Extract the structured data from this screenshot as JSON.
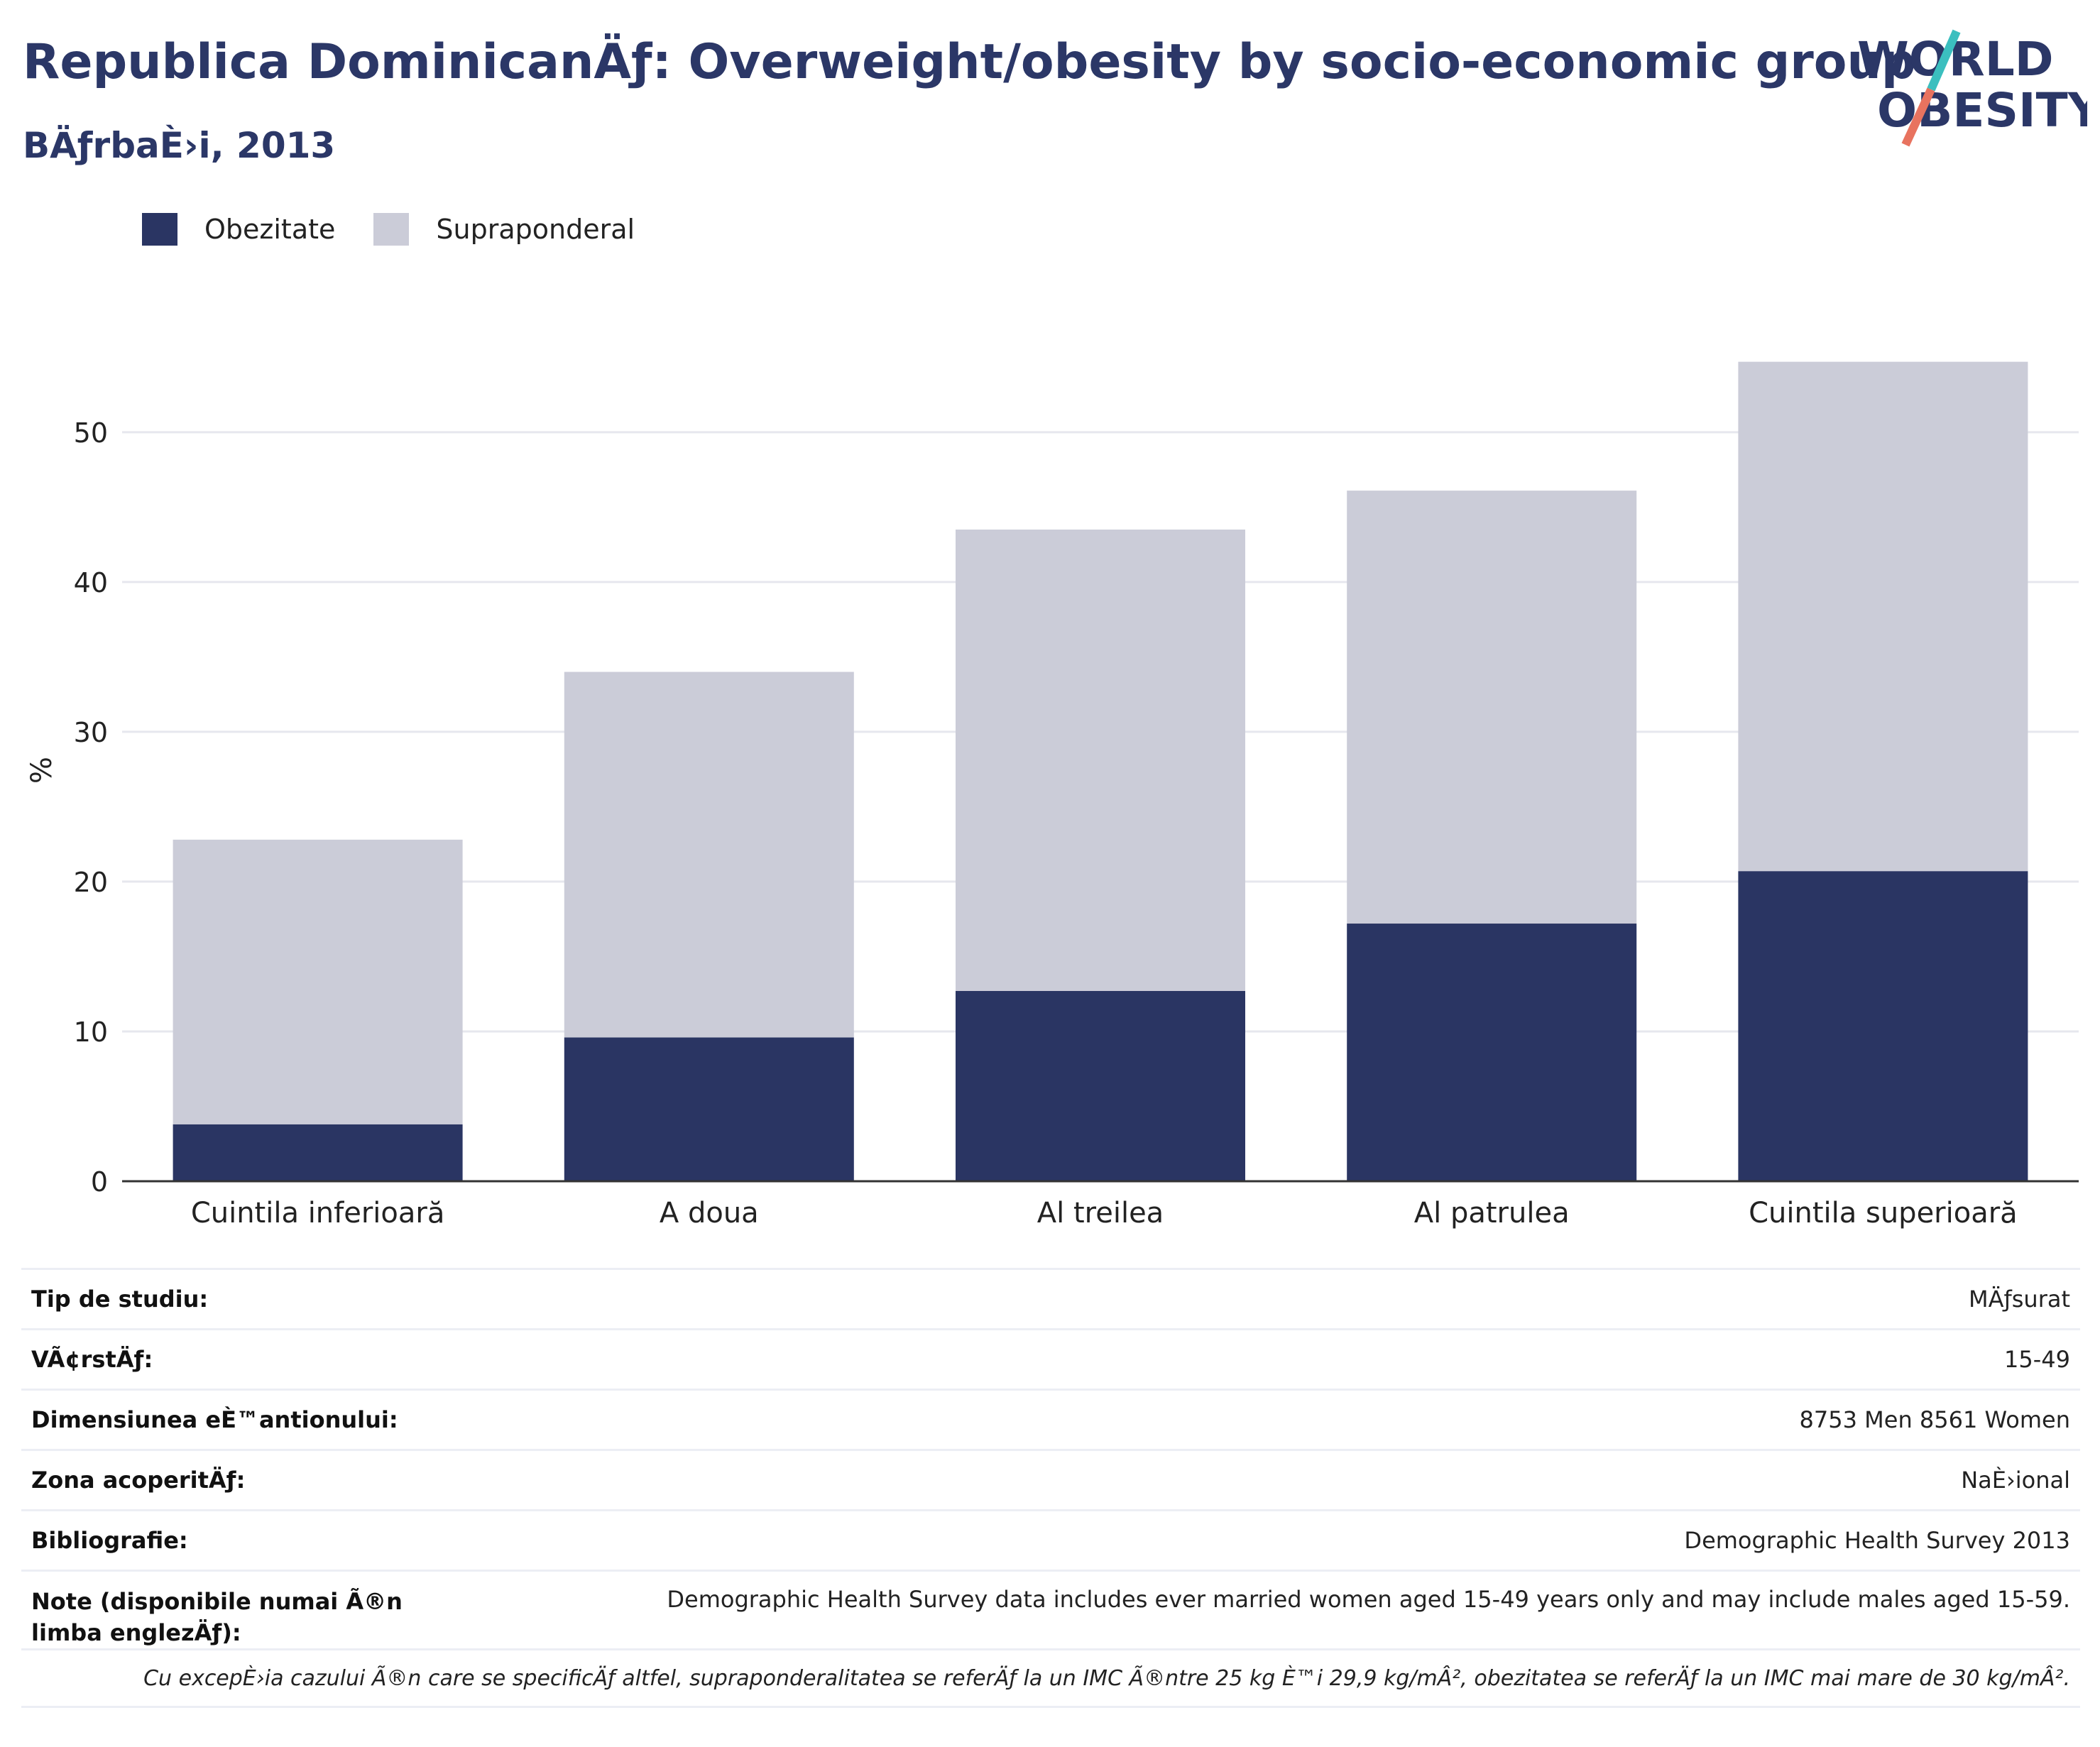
{
  "header": {
    "title": "Republica DominicanÄƒ: Overweight/obesity by socio-economic group",
    "subtitle": "BÄƒrbaÈ›i, 2013"
  },
  "logo": {
    "line1": "WORLD",
    "line2": "OBESITY",
    "accent_teal": "#3bbfbf",
    "accent_coral": "#e8735f"
  },
  "colors": {
    "obezitate": "#2a3563",
    "supraponderal": "#cbccd8",
    "grid": "#e6e7ee",
    "axis": "#333333"
  },
  "legend": [
    {
      "label": "Obezitate",
      "color": "#2a3563"
    },
    {
      "label": "Supraponderal",
      "color": "#cbccd8"
    }
  ],
  "chart_data": {
    "type": "bar",
    "stacked": true,
    "categories": [
      "Cuintila inferioară",
      "A doua",
      "Al treilea",
      "Al patrulea",
      "Cuintila superioară"
    ],
    "series": [
      {
        "name": "Obezitate",
        "values": [
          3.8,
          9.6,
          12.7,
          17.2,
          20.7
        ]
      },
      {
        "name": "Supraponderal",
        "values": [
          19.0,
          24.4,
          30.8,
          28.9,
          34.0
        ]
      }
    ],
    "ylabel": "%",
    "yticks": [
      0,
      10,
      20,
      30,
      40,
      50
    ],
    "ylim": [
      0,
      58
    ],
    "grid": true,
    "legend_position": "top-left"
  },
  "info": [
    {
      "label": "Tip de studiu:",
      "value": "MÄƒsurat"
    },
    {
      "label": "VÃ¢rstÄƒ:",
      "value": "15-49"
    },
    {
      "label": "Dimensiunea eÈ™antionului:",
      "value": "8753 Men 8561 Women"
    },
    {
      "label": "Zona acoperitÄƒ:",
      "value": "NaÈ›ional"
    },
    {
      "label": "Bibliografie:",
      "value": "Demographic Health Survey 2013"
    },
    {
      "label": "Note (disponibile numai Ã®n limba englezÄƒ):",
      "value": "Demographic Health Survey data includes ever married women aged 15-49 years only and may include males aged 15-59."
    }
  ],
  "footnote": "Cu excepÈ›ia cazului Ã®n care se specificÄƒ altfel, supraponderalitatea se referÄƒ la un IMC Ã®ntre 25 kg È™i 29,9 kg/mÂ², obezitatea se referÄƒ la un IMC mai mare de 30 kg/mÂ²."
}
